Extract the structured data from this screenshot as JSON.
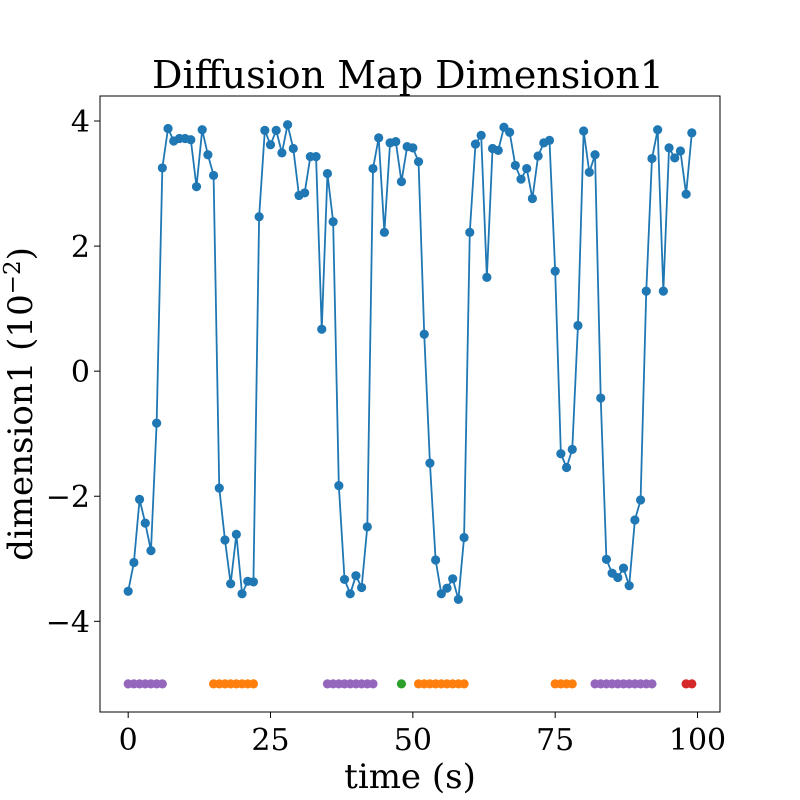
{
  "chart_data": {
    "type": "line",
    "title": "Diffusion Map Dimension1",
    "xlabel": "time (s)",
    "ylabel": "dimension1 (10",
    "ylabel_exponent": "−2",
    "ylabel_close": ")",
    "xlim": [
      -4.95,
      103.95
    ],
    "ylim": [
      -5.45,
      4.4
    ],
    "xticks": [
      0,
      25,
      50,
      75,
      100
    ],
    "xtick_labels": [
      "0",
      "25",
      "50",
      "75",
      "100"
    ],
    "yticks": [
      -4,
      -2,
      0,
      2,
      4
    ],
    "ytick_labels": [
      "−4",
      "−2",
      "0",
      "2",
      "4"
    ],
    "grid": false,
    "series": [
      {
        "color": "#1f77b4",
        "marker": "circle",
        "x": [
          0,
          1,
          2,
          3,
          4,
          5,
          6,
          7,
          8,
          9,
          10,
          11,
          12,
          13,
          14,
          15,
          16,
          17,
          18,
          19,
          20,
          21,
          22,
          23,
          24,
          25,
          26,
          27,
          28,
          29,
          30,
          31,
          32,
          33,
          34,
          35,
          36,
          37,
          38,
          39,
          40,
          41,
          42,
          43,
          44,
          45,
          46,
          47,
          48,
          49,
          50,
          51,
          52,
          53,
          54,
          55,
          56,
          57,
          58,
          59,
          60,
          61,
          62,
          63,
          64,
          65,
          66,
          67,
          68,
          69,
          70,
          71,
          72,
          73,
          74,
          75,
          76,
          77,
          78,
          79,
          80,
          81,
          82,
          83,
          84,
          85,
          86,
          87,
          88,
          89,
          90,
          91,
          92,
          93,
          94,
          95,
          96,
          97,
          98,
          99
        ],
        "y": [
          -3.52,
          -3.06,
          -2.05,
          -2.43,
          -2.87,
          -0.83,
          3.25,
          3.88,
          3.68,
          3.72,
          3.72,
          3.7,
          2.95,
          3.86,
          3.46,
          3.13,
          -1.87,
          -2.7,
          -3.4,
          -2.61,
          -3.56,
          -3.36,
          -3.37,
          2.47,
          3.85,
          3.62,
          3.85,
          3.49,
          3.94,
          3.56,
          2.81,
          2.85,
          3.43,
          3.43,
          0.67,
          3.16,
          2.39,
          -1.83,
          -3.33,
          -3.56,
          -3.27,
          -3.46,
          -2.49,
          3.24,
          3.73,
          2.22,
          3.65,
          3.67,
          3.03,
          3.59,
          3.57,
          3.35,
          0.59,
          -1.47,
          -3.02,
          -3.56,
          -3.47,
          -3.32,
          -3.65,
          -2.66,
          2.22,
          3.63,
          3.77,
          1.5,
          3.56,
          3.53,
          3.9,
          3.82,
          3.29,
          3.07,
          3.24,
          2.76,
          3.44,
          3.65,
          3.69,
          1.6,
          -1.32,
          -1.54,
          -1.25,
          0.73,
          3.84,
          3.18,
          3.46,
          -0.43,
          -3.01,
          -3.23,
          -3.3,
          -3.15,
          -3.43,
          -2.38,
          -2.06,
          1.28,
          3.4,
          3.86,
          1.28,
          3.57,
          3.41,
          3.52,
          2.83,
          3.81
        ]
      }
    ],
    "state_markers": {
      "y": -5.0,
      "groups": [
        {
          "state": "purple",
          "color": "#9467bd",
          "x": [
            0,
            1,
            2,
            3,
            4,
            5,
            6
          ]
        },
        {
          "state": "orange",
          "color": "#ff7f0e",
          "x": [
            15,
            16,
            17,
            18,
            19,
            20,
            21,
            22
          ]
        },
        {
          "state": "purple",
          "color": "#9467bd",
          "x": [
            35,
            36,
            37,
            38,
            39,
            40,
            41,
            42,
            43
          ]
        },
        {
          "state": "green",
          "color": "#2ca02c",
          "x": [
            48
          ]
        },
        {
          "state": "orange",
          "color": "#ff7f0e",
          "x": [
            51,
            52,
            53,
            54,
            55,
            56,
            57,
            58,
            59
          ]
        },
        {
          "state": "orange",
          "color": "#ff7f0e",
          "x": [
            75,
            76,
            77,
            78
          ]
        },
        {
          "state": "purple",
          "color": "#9467bd",
          "x": [
            82,
            83,
            84,
            85,
            86,
            87,
            88,
            89,
            90,
            91,
            92
          ]
        },
        {
          "state": "red",
          "color": "#d62728",
          "x": [
            98,
            99
          ]
        }
      ]
    }
  }
}
